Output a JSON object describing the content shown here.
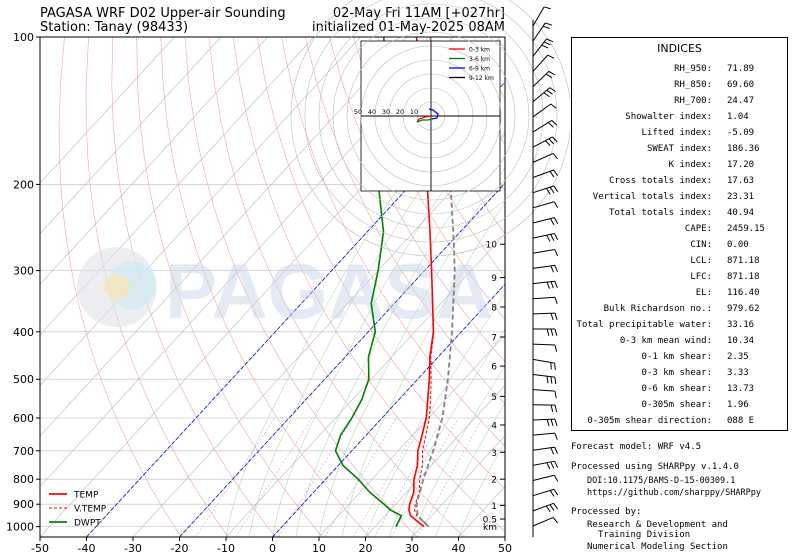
{
  "header": {
    "title_left": "PAGASA WRF D02 Upper-air Sounding",
    "station": "Station: Tanay (98433)",
    "valid": "02-May Fri 11AM [+027hr]",
    "init": "initialized 01-May-2025 08AM"
  },
  "chart_data": {
    "type": "line",
    "xlim": [
      -50,
      50
    ],
    "x_ticks": [
      -50,
      -40,
      -30,
      -20,
      -10,
      0,
      10,
      20,
      30,
      40,
      50
    ],
    "p_ticks": [
      1000,
      900,
      800,
      700,
      600,
      500,
      400,
      300,
      200,
      100
    ],
    "km_ticks": [
      {
        "label": "0.5",
        "p": 965
      },
      {
        "label": "1",
        "p": 905
      },
      {
        "label": "2",
        "p": 800
      },
      {
        "label": "3",
        "p": 705
      },
      {
        "label": "4",
        "p": 620
      },
      {
        "label": "5",
        "p": 542
      },
      {
        "label": "6",
        "p": 470
      },
      {
        "label": "7",
        "p": 410
      },
      {
        "label": "8",
        "p": 356
      },
      {
        "label": "9",
        "p": 310
      },
      {
        "label": "10",
        "p": 265
      }
    ],
    "km_unit": "km",
    "legend": [
      "TEMP",
      "V.TEMP",
      "DWPT"
    ],
    "series": [
      {
        "name": "TEMP",
        "color": "#ff0000",
        "dash": false,
        "points": [
          [
            1000,
            30.5
          ],
          [
            975,
            28.0
          ],
          [
            950,
            25.5
          ],
          [
            925,
            24.0
          ],
          [
            900,
            23.0
          ],
          [
            850,
            21.5
          ],
          [
            800,
            19.0
          ],
          [
            750,
            17.0
          ],
          [
            700,
            14.2
          ],
          [
            650,
            12.0
          ],
          [
            600,
            9.5
          ],
          [
            550,
            6.2
          ],
          [
            500,
            2.5
          ],
          [
            450,
            -1.8
          ],
          [
            400,
            -6.0
          ],
          [
            350,
            -11.8
          ],
          [
            300,
            -18.5
          ],
          [
            250,
            -26.5
          ],
          [
            200,
            -36.5
          ],
          [
            175,
            -41.5
          ],
          [
            150,
            -48.5
          ],
          [
            125,
            -56.5
          ],
          [
            100,
            -68.0
          ]
        ]
      },
      {
        "name": "V.TEMP",
        "color": "#ff0000",
        "dash": true,
        "points": [
          [
            1000,
            31.5
          ],
          [
            975,
            29.3
          ],
          [
            950,
            26.8
          ],
          [
            925,
            25.2
          ],
          [
            900,
            24.2
          ],
          [
            850,
            22.7
          ],
          [
            800,
            20.2
          ],
          [
            750,
            18.1
          ],
          [
            700,
            15.2
          ],
          [
            650,
            12.8
          ],
          [
            600,
            10.2
          ],
          [
            550,
            6.8
          ],
          [
            500,
            2.9
          ],
          [
            450,
            -1.6
          ],
          [
            400,
            -5.9
          ]
        ]
      },
      {
        "name": "DWPT",
        "color": "#008000",
        "dash": false,
        "points": [
          [
            1000,
            24.5
          ],
          [
            975,
            24.0
          ],
          [
            950,
            23.5
          ],
          [
            925,
            20.0
          ],
          [
            900,
            17.5
          ],
          [
            850,
            12.0
          ],
          [
            800,
            7.0
          ],
          [
            750,
            1.0
          ],
          [
            700,
            -3.5
          ],
          [
            650,
            -5.5
          ],
          [
            600,
            -6.5
          ],
          [
            550,
            -8.0
          ],
          [
            500,
            -10.5
          ],
          [
            450,
            -15.0
          ],
          [
            400,
            -18.5
          ],
          [
            350,
            -25.0
          ],
          [
            300,
            -30.0
          ],
          [
            250,
            -36.5
          ],
          [
            200,
            -47.0
          ],
          [
            175,
            -52.0
          ],
          [
            150,
            -58.0
          ],
          [
            125,
            -65.0
          ],
          [
            100,
            -75.0
          ]
        ]
      },
      {
        "name": "parcel",
        "color": "#808080",
        "dash": true,
        "points": [
          [
            1000,
            31.5
          ],
          [
            950,
            27.0
          ],
          [
            900,
            24.5
          ],
          [
            800,
            21.0
          ],
          [
            700,
            17.5
          ],
          [
            600,
            13.0
          ],
          [
            500,
            6.5
          ],
          [
            400,
            -2.0
          ],
          [
            300,
            -13.5
          ],
          [
            250,
            -21.5
          ],
          [
            200,
            -31.5
          ],
          [
            150,
            -45.0
          ],
          [
            100,
            -65.0
          ]
        ]
      }
    ],
    "hodograph": {
      "rings": [
        "50",
        "40",
        "30",
        "20",
        "10"
      ],
      "legend": [
        {
          "label": "0-3 km",
          "color": "#ff0000"
        },
        {
          "label": "3-6 km",
          "color": "#008000"
        },
        {
          "label": "6-9 km",
          "color": "#0000ff"
        },
        {
          "label": "9-12 km",
          "color": "#000000"
        }
      ]
    },
    "barbs_count": 34
  },
  "indices": {
    "title": "INDICES",
    "rows": [
      {
        "label": "RH_950:",
        "value": "71.89"
      },
      {
        "label": "RH_850:",
        "value": "69.60"
      },
      {
        "label": "RH_700:",
        "value": "24.47"
      },
      {
        "label": "Showalter index:",
        "value": "1.04"
      },
      {
        "label": "Lifted index:",
        "value": "-5.09"
      },
      {
        "label": "SWEAT index:",
        "value": "186.36"
      },
      {
        "label": "K index:",
        "value": "17.20"
      },
      {
        "label": "Cross totals index:",
        "value": "17.63"
      },
      {
        "label": "Vertical totals index:",
        "value": "23.31"
      },
      {
        "label": "Total totals index:",
        "value": "40.94"
      },
      {
        "label": "CAPE:",
        "value": "2459.15"
      },
      {
        "label": "CIN:",
        "value": "0.00"
      },
      {
        "label": "LCL:",
        "value": "871.18"
      },
      {
        "label": "LFC:",
        "value": "871.18"
      },
      {
        "label": "EL:",
        "value": "116.40"
      },
      {
        "label": "Bulk Richardson no.:",
        "value": "979.62"
      },
      {
        "label": "Total precipitable water:",
        "value": "33.16"
      },
      {
        "label": "0-3 km mean wind:",
        "value": "10.34"
      },
      {
        "label": "0-1 km shear:",
        "value": "2.35"
      },
      {
        "label": "0-3 km shear:",
        "value": "3.33"
      },
      {
        "label": "0-6 km shear:",
        "value": "13.73"
      },
      {
        "label": "0-305m shear:",
        "value": "1.96"
      },
      {
        "label": "0-305m shear direction:",
        "value": "088 E"
      }
    ]
  },
  "footer": {
    "model": "Forecast model: WRF v4.5",
    "processed": "Processed using SHARPpy v.1.4.0",
    "doi": "DOI:10.1175/BAMS-D-15-00309.1",
    "url": "https://github.com/sharppy/SHARPpy",
    "processed_by": "Processed by:",
    "org1": "Research & Development and",
    "org2": "Training Division",
    "org3": "Numerical Modeling Section"
  },
  "watermark": "PAGASA"
}
